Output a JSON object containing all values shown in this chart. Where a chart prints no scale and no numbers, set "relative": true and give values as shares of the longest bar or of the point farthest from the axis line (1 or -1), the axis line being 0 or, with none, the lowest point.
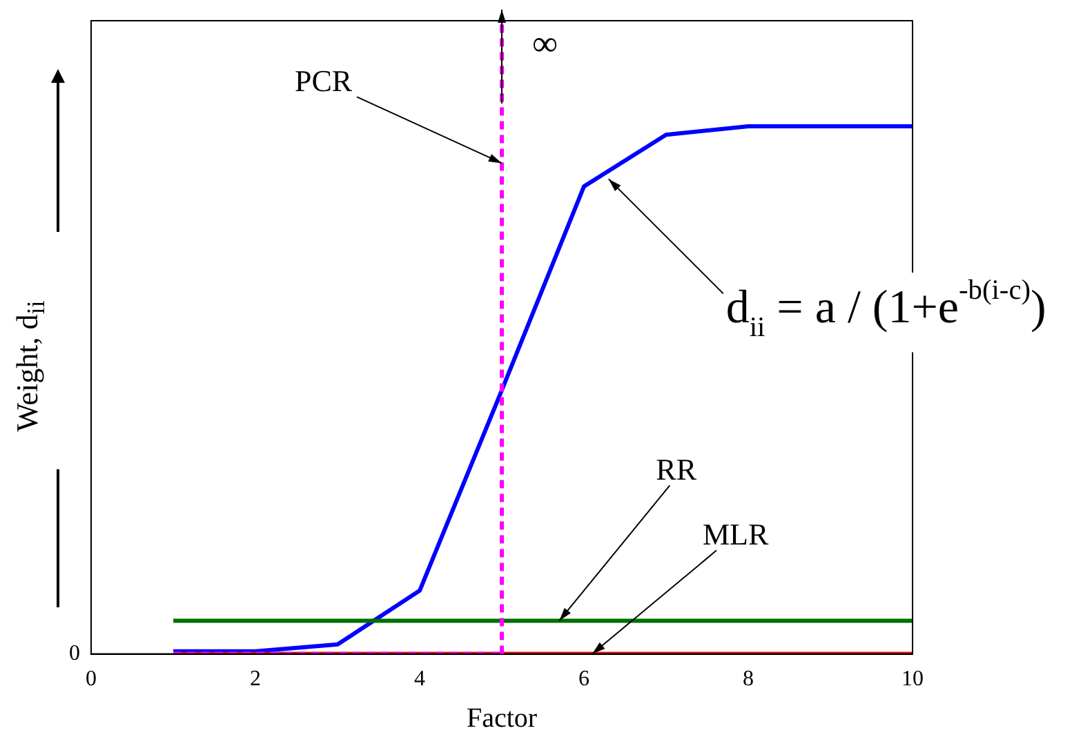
{
  "chart_data": {
    "type": "line",
    "relative": true,
    "xlabel": "Factor",
    "ylabel": "Weight, d$_{ii}$",
    "legend": false,
    "grid": false,
    "marker": "none",
    "xlim": [
      0,
      10
    ],
    "xticks": [
      0,
      2,
      4,
      6,
      8,
      10
    ],
    "series": [
      {
        "color": "#0000ff",
        "x": [
          1,
          2,
          3,
          4,
          5,
          6,
          7,
          8,
          9,
          10
        ],
        "values": [
          0.005,
          0.005,
          0.018,
          0.12,
          0.5,
          0.886,
          0.984,
          1,
          1,
          1
        ]
      },
      {
        "color": "#007000",
        "x": [
          1,
          10
        ],
        "values": [
          0.063,
          0.063
        ]
      },
      {
        "color": "#ff0000",
        "x": [
          1,
          10
        ],
        "values": [
          0,
          0
        ]
      },
      {
        "color": "#ff00ff",
        "x": [
          1,
          5
        ],
        "values": [
          0,
          0
        ],
        "line_style": "dashed"
      }
    ],
    "ref_lines": [
      {
        "axis": "x",
        "value": 5,
        "label": "∞",
        "color": "#ff00ff",
        "line_style": "dashed"
      }
    ],
    "annotations": [
      "0",
      {
        "text": "PCR",
        "x": 5,
        "y": 0.93
      },
      {
        "text": "d$_{ii}$ = a / (1+e$^{-b(i-c)}$)",
        "x": 6.3,
        "y": 0.9
      },
      {
        "text": "RR",
        "x": 5.7,
        "y": 0.063
      },
      {
        "text": "MLR",
        "x": 6.1,
        "y": 0
      }
    ]
  }
}
